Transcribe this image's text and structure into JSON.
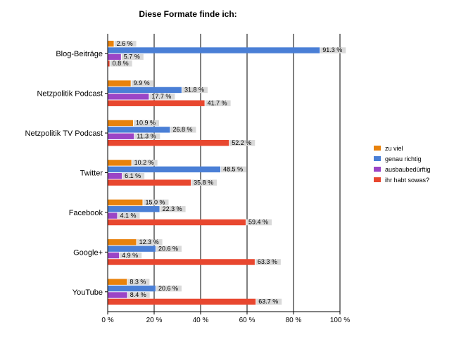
{
  "chart_data": {
    "type": "bar",
    "orientation": "horizontal",
    "title": "Diese Formate finde ich:",
    "xlabel": "",
    "ylabel": "",
    "xlim": [
      0,
      100
    ],
    "x_ticks": [
      0,
      20,
      40,
      60,
      80,
      100
    ],
    "x_tick_labels": [
      "0 %",
      "20 %",
      "40 %",
      "60 %",
      "80 %",
      "100 %"
    ],
    "grid": true,
    "legend_position": "right",
    "categories": [
      "Blog-Beiträge",
      "Netzpolitik Podcast",
      "Netzpolitik TV Podcast",
      "Twitter",
      "Facebook",
      "Google+",
      "YouTube"
    ],
    "series": [
      {
        "name": "zu viel",
        "color": "#e8820c",
        "values": [
          2.6,
          9.9,
          10.9,
          10.2,
          15.0,
          12.3,
          8.3
        ],
        "labels": [
          "2.6 %",
          "9.9 %",
          "10.9 %",
          "10.2 %",
          "15.0 %",
          "12.3 %",
          "8.3 %"
        ]
      },
      {
        "name": "genau richtig",
        "color": "#4a7fd6",
        "values": [
          91.3,
          31.8,
          26.8,
          48.5,
          22.3,
          20.6,
          20.6
        ],
        "labels": [
          "91.3 %",
          "31.8 %",
          "26.8 %",
          "48.5 %",
          "22.3 %",
          "20.6 %",
          "20.6 %"
        ]
      },
      {
        "name": "ausbaubedürftig",
        "color": "#9b45c6",
        "values": [
          5.7,
          17.7,
          11.3,
          6.1,
          4.1,
          4.9,
          8.4
        ],
        "labels": [
          "5.7 %",
          "17.7 %",
          "11.3 %",
          "6.1 %",
          "4.1 %",
          "4.9 %",
          "8.4 %"
        ]
      },
      {
        "name": "ihr habt sowas?",
        "color": "#e8472f",
        "values": [
          0.8,
          41.7,
          52.2,
          35.8,
          59.4,
          63.3,
          63.7
        ],
        "labels": [
          "0.8 %",
          "41.7 %",
          "52.2 %",
          "35.8 %",
          "59.4 %",
          "63.3 %",
          "63.7 %"
        ]
      }
    ]
  }
}
